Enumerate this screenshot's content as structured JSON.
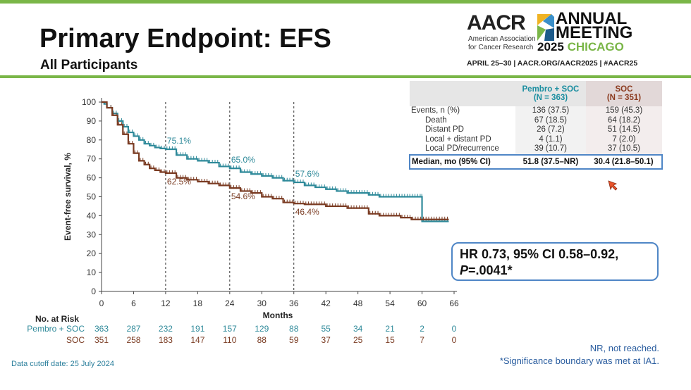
{
  "header": {
    "title": "Primary Endpoint: EFS",
    "subtitle": "All Participants"
  },
  "logo": {
    "aacr": "AACR",
    "aacr_sub_line1": "American Association",
    "aacr_sub_line2": "for Cancer Research",
    "meeting_line1": "ANNUAL",
    "meeting_line2": "MEETING",
    "meeting_year": "2025",
    "meeting_city": "CHICAGO",
    "dates": "APRIL 25–30 | AACR.ORG/AACR2025 | #AACR25"
  },
  "table": {
    "col_pembro_line1": "Pembro + SOC",
    "col_pembro_line2": "(N = 363)",
    "col_soc_line1": "SOC",
    "col_soc_line2": "(N = 351)",
    "rows": [
      {
        "label": "Events, n (%)",
        "pembro": "136 (37.5)",
        "soc": "159 (45.3)",
        "indent": false
      },
      {
        "label": "Death",
        "pembro": "67 (18.5)",
        "soc": "64 (18.2)",
        "indent": true
      },
      {
        "label": "Distant PD",
        "pembro": "26 (7.2)",
        "soc": "51 (14.5)",
        "indent": true
      },
      {
        "label": "Local + distant PD",
        "pembro": "4 (1.1)",
        "soc": "7 (2.0)",
        "indent": true
      },
      {
        "label": "Local PD/recurrence",
        "pembro": "39 (10.7)",
        "soc": "37 (10.5)",
        "indent": true
      }
    ],
    "median": {
      "label": "Median, mo (95% CI)",
      "pembro": "51.8 (37.5–NR)",
      "soc": "30.4 (21.8–50.1)"
    }
  },
  "hr_box": {
    "line1": "HR 0.73, 95% CI 0.58–0.92,",
    "p_label": "P",
    "p_value": "=.0041*"
  },
  "footer": {
    "cutoff": "Data cutoff date: 25 July 2024",
    "nr_note": "NR, not reached.",
    "sig_note": "*Significance boundary was met at IA1."
  },
  "chart_data": {
    "type": "line",
    "title": "",
    "xlabel": "Months",
    "ylabel": "Event-free survival, %",
    "xlim": [
      0,
      66
    ],
    "ylim": [
      0,
      100
    ],
    "xticks": [
      0,
      6,
      12,
      18,
      24,
      30,
      36,
      42,
      48,
      54,
      60,
      66
    ],
    "yticks": [
      0,
      10,
      20,
      30,
      40,
      50,
      60,
      70,
      80,
      90,
      100
    ],
    "series": [
      {
        "name": "Pembro + SOC",
        "color": "#2f8a9a",
        "points": [
          [
            0,
            100
          ],
          [
            0.5,
            99
          ],
          [
            1,
            97
          ],
          [
            2,
            94
          ],
          [
            3,
            90
          ],
          [
            4,
            87
          ],
          [
            5,
            84
          ],
          [
            6,
            82
          ],
          [
            7,
            80
          ],
          [
            8,
            78
          ],
          [
            9,
            77
          ],
          [
            10,
            76
          ],
          [
            11,
            75.5
          ],
          [
            12,
            75.1
          ],
          [
            14,
            72
          ],
          [
            16,
            70
          ],
          [
            18,
            69
          ],
          [
            20,
            68
          ],
          [
            22,
            66
          ],
          [
            24,
            65
          ],
          [
            26,
            63
          ],
          [
            28,
            62
          ],
          [
            30,
            61
          ],
          [
            32,
            60
          ],
          [
            34,
            58.5
          ],
          [
            36,
            57.6
          ],
          [
            38,
            56
          ],
          [
            40,
            55
          ],
          [
            42,
            54
          ],
          [
            44,
            53
          ],
          [
            46,
            52
          ],
          [
            48,
            52
          ],
          [
            50,
            51
          ],
          [
            52,
            50
          ],
          [
            56,
            50
          ],
          [
            59.9,
            50
          ],
          [
            60,
            37
          ],
          [
            65,
            37
          ]
        ],
        "landmarks": [
          {
            "x": 12,
            "y": 75.1,
            "label": "75.1%"
          },
          {
            "x": 24,
            "y": 65.0,
            "label": "65.0%"
          },
          {
            "x": 36,
            "y": 57.6,
            "label": "57.6%"
          }
        ]
      },
      {
        "name": "SOC",
        "color": "#7a3b22",
        "points": [
          [
            0,
            100
          ],
          [
            1,
            97
          ],
          [
            2,
            93
          ],
          [
            3,
            88
          ],
          [
            4,
            83
          ],
          [
            5,
            78
          ],
          [
            6,
            73
          ],
          [
            7,
            69
          ],
          [
            8,
            67
          ],
          [
            9,
            65
          ],
          [
            10,
            64
          ],
          [
            11,
            63
          ],
          [
            12,
            62.5
          ],
          [
            14,
            60
          ],
          [
            16,
            59
          ],
          [
            18,
            58
          ],
          [
            20,
            57
          ],
          [
            22,
            56
          ],
          [
            24,
            54.6
          ],
          [
            26,
            53
          ],
          [
            28,
            52
          ],
          [
            30,
            50
          ],
          [
            32,
            49
          ],
          [
            34,
            47
          ],
          [
            36,
            46.4
          ],
          [
            38,
            46
          ],
          [
            42,
            45
          ],
          [
            46,
            44
          ],
          [
            50,
            41
          ],
          [
            52,
            40
          ],
          [
            56,
            39
          ],
          [
            58,
            38
          ],
          [
            65,
            38
          ]
        ],
        "landmarks": [
          {
            "x": 12,
            "y": 62.5,
            "label": "62.5%"
          },
          {
            "x": 24,
            "y": 54.6,
            "label": "54.6%"
          },
          {
            "x": 36,
            "y": 46.4,
            "label": "46.4%"
          }
        ]
      }
    ],
    "reference_lines_x": [
      12,
      24,
      36
    ],
    "at_risk": {
      "label": "No. at Risk",
      "times": [
        0,
        6,
        12,
        18,
        24,
        30,
        36,
        42,
        48,
        54,
        60,
        66
      ],
      "rows": [
        {
          "name": "Pembro + SOC",
          "values": [
            363,
            287,
            232,
            191,
            157,
            129,
            88,
            55,
            34,
            21,
            2,
            0
          ]
        },
        {
          "name": "SOC",
          "values": [
            351,
            258,
            183,
            147,
            110,
            88,
            59,
            37,
            25,
            15,
            7,
            0
          ]
        }
      ]
    }
  }
}
